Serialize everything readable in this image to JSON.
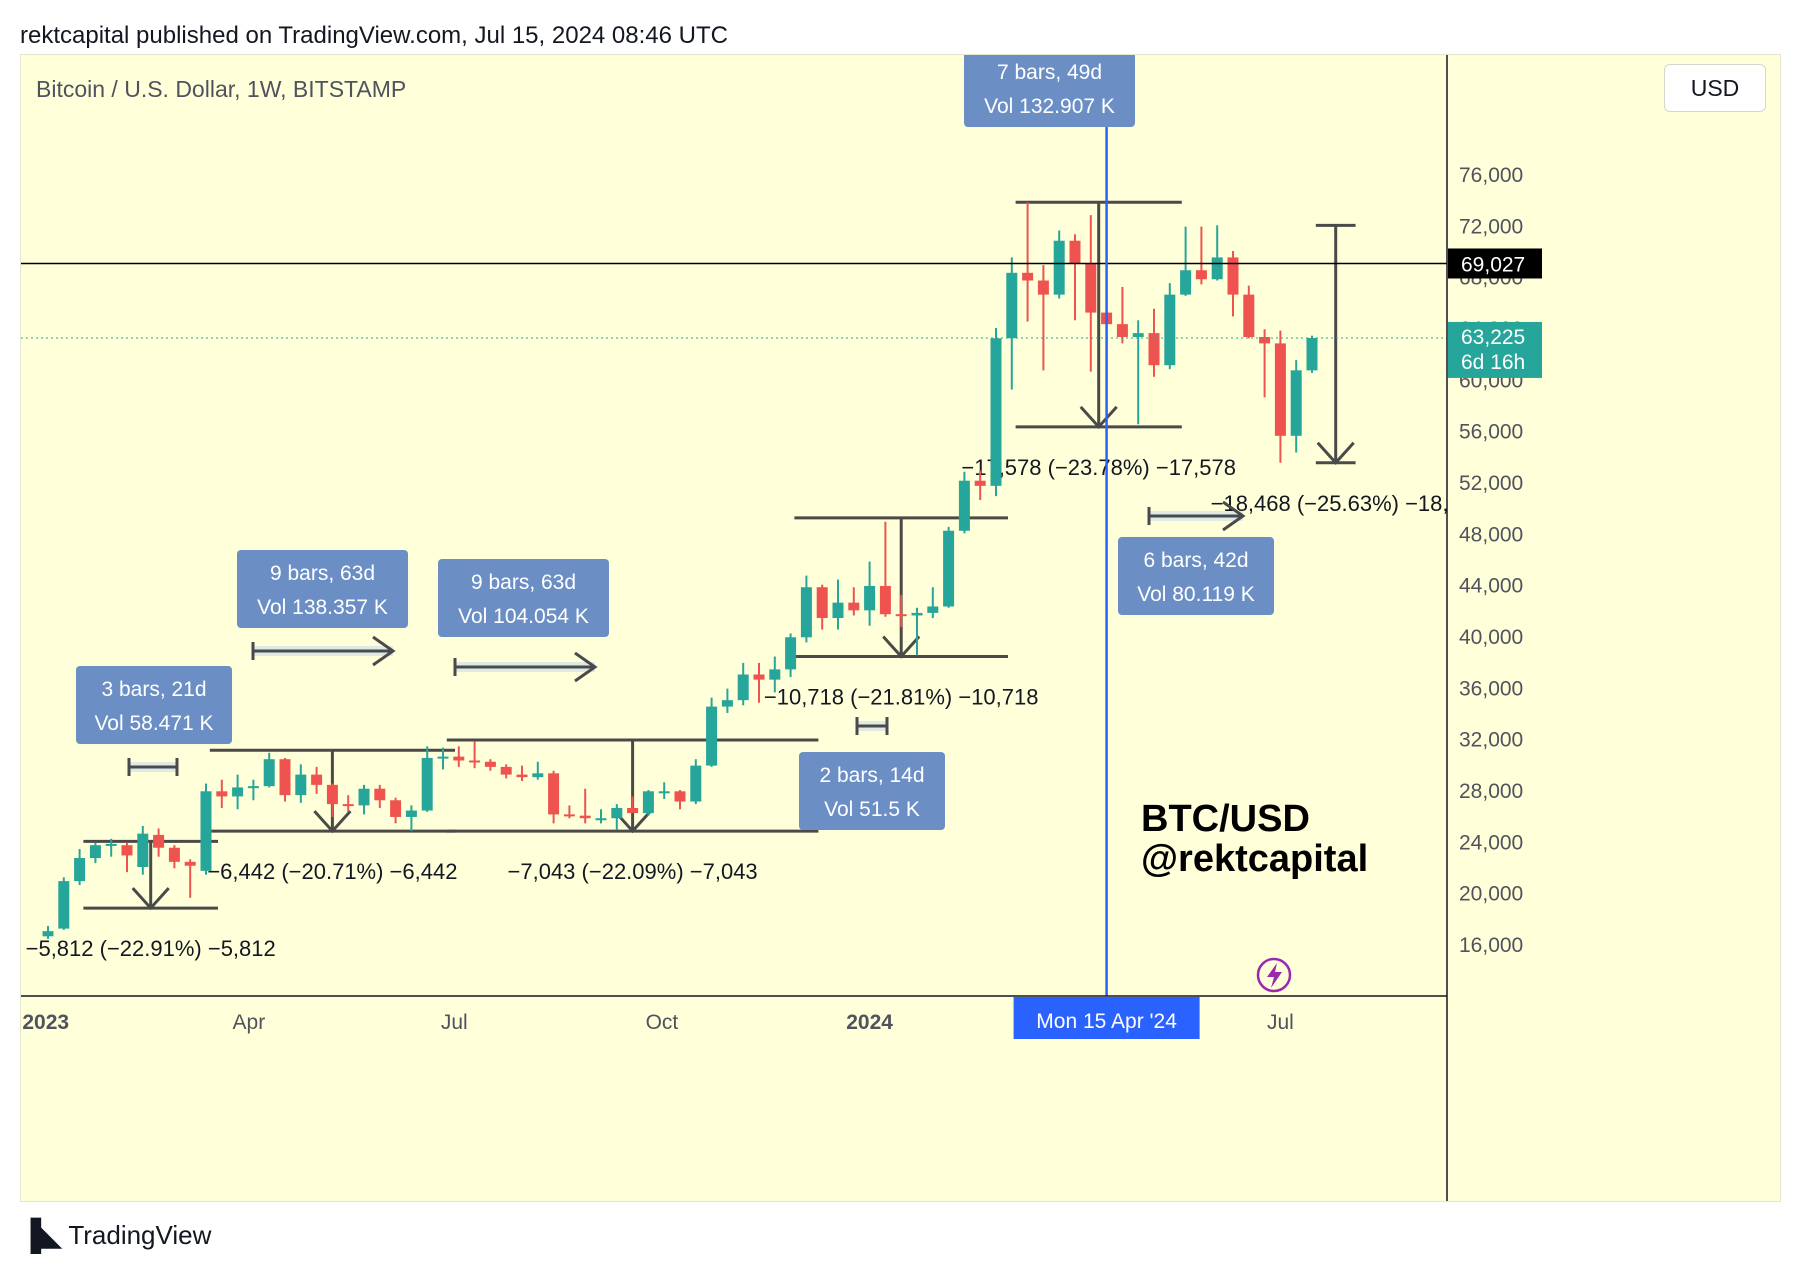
{
  "header": {
    "credit": "rektcapital published on TradingView.com, Jul 15, 2024 08:46 UTC"
  },
  "chart_header": {
    "symbol": "Bitcoin / U.S. Dollar, 1W, BITSTAMP",
    "currency_button": "USD"
  },
  "branding": {
    "watermark_line1": "BTC/USD",
    "watermark_line2": "@rektcapital",
    "logo_icon": "tradingview-logo-icon",
    "logo_text": "TradingView",
    "lightning_icon": "lightning-icon"
  },
  "colors": {
    "background": "#ffffd9",
    "up": "#26a69a",
    "down": "#ef5350",
    "vertical_line": "#2962ff",
    "callout": "#6b8fc5",
    "drawing": "#4a4a4a",
    "badge_current": "#26a69a",
    "badge_level": "#000000"
  },
  "chart_data": {
    "type": "candlestick",
    "timeframe": "1W",
    "title": "Bitcoin / U.S. Dollar, 1W, BITSTAMP",
    "ylim": [
      12000,
      80000
    ],
    "y_ticks": [
      16000,
      20000,
      24000,
      28000,
      32000,
      36000,
      40000,
      44000,
      48000,
      52000,
      56000,
      60000,
      64000,
      68000,
      72000,
      76000
    ],
    "y_tick_labels": [
      "16,000",
      "20,000",
      "24,000",
      "28,000",
      "32,000",
      "36,000",
      "40,000",
      "44,000",
      "48,000",
      "52,000",
      "56,000",
      "60,000",
      "64,000",
      "68,000",
      "72,000",
      "76,000"
    ],
    "x_labels": [
      {
        "date": "2023-01-01",
        "text": "2023",
        "bold": true
      },
      {
        "date": "2023-04-01",
        "text": "Apr",
        "bold": false
      },
      {
        "date": "2023-07-01",
        "text": "Jul",
        "bold": false
      },
      {
        "date": "2023-10-01",
        "text": "Oct",
        "bold": false
      },
      {
        "date": "2024-01-01",
        "text": "2024",
        "bold": true
      },
      {
        "date": "2024-07-01",
        "text": "Jul",
        "bold": false
      }
    ],
    "candles": [
      {
        "date": "2023-01-02",
        "o": 16600,
        "h": 17400,
        "l": 16400,
        "c": 17000
      },
      {
        "date": "2023-01-09",
        "o": 17200,
        "h": 21200,
        "l": 17100,
        "c": 20900
      },
      {
        "date": "2023-01-16",
        "o": 20900,
        "h": 23400,
        "l": 20600,
        "c": 22700
      },
      {
        "date": "2023-01-23",
        "o": 22700,
        "h": 23900,
        "l": 22300,
        "c": 23700
      },
      {
        "date": "2023-01-30",
        "o": 23700,
        "h": 24200,
        "l": 22800,
        "c": 23800
      },
      {
        "date": "2023-02-06",
        "o": 23700,
        "h": 23900,
        "l": 21600,
        "c": 22900
      },
      {
        "date": "2023-02-13",
        "o": 22000,
        "h": 25200,
        "l": 21400,
        "c": 24600
      },
      {
        "date": "2023-02-20",
        "o": 24500,
        "h": 25000,
        "l": 22800,
        "c": 23500
      },
      {
        "date": "2023-02-27",
        "o": 23500,
        "h": 23700,
        "l": 21900,
        "c": 22400
      },
      {
        "date": "2023-03-06",
        "o": 22400,
        "h": 22600,
        "l": 19600,
        "c": 22100
      },
      {
        "date": "2023-03-13",
        "o": 21700,
        "h": 28500,
        "l": 21400,
        "c": 27900
      },
      {
        "date": "2023-03-20",
        "o": 27900,
        "h": 28800,
        "l": 26600,
        "c": 27500
      },
      {
        "date": "2023-03-27",
        "o": 27500,
        "h": 29200,
        "l": 26500,
        "c": 28200
      },
      {
        "date": "2023-04-03",
        "o": 28200,
        "h": 28800,
        "l": 27200,
        "c": 28300
      },
      {
        "date": "2023-04-10",
        "o": 28300,
        "h": 30900,
        "l": 28200,
        "c": 30400
      },
      {
        "date": "2023-04-17",
        "o": 30400,
        "h": 30500,
        "l": 27100,
        "c": 27600
      },
      {
        "date": "2023-04-24",
        "o": 27600,
        "h": 30000,
        "l": 27000,
        "c": 29200
      },
      {
        "date": "2023-05-01",
        "o": 29200,
        "h": 29800,
        "l": 27700,
        "c": 28400
      },
      {
        "date": "2023-05-08",
        "o": 28400,
        "h": 28500,
        "l": 25900,
        "c": 26900
      },
      {
        "date": "2023-05-15",
        "o": 26900,
        "h": 27600,
        "l": 26300,
        "c": 26800
      },
      {
        "date": "2023-05-22",
        "o": 26800,
        "h": 28400,
        "l": 26100,
        "c": 28100
      },
      {
        "date": "2023-05-29",
        "o": 28100,
        "h": 28400,
        "l": 26600,
        "c": 27200
      },
      {
        "date": "2023-06-05",
        "o": 27200,
        "h": 27400,
        "l": 25400,
        "c": 25900
      },
      {
        "date": "2023-06-12",
        "o": 25900,
        "h": 26800,
        "l": 24800,
        "c": 26400
      },
      {
        "date": "2023-06-19",
        "o": 26400,
        "h": 31400,
        "l": 26300,
        "c": 30500
      },
      {
        "date": "2023-06-26",
        "o": 30500,
        "h": 31300,
        "l": 29600,
        "c": 30600
      },
      {
        "date": "2023-07-03",
        "o": 30600,
        "h": 31400,
        "l": 29800,
        "c": 30300
      },
      {
        "date": "2023-07-10",
        "o": 30300,
        "h": 31800,
        "l": 29700,
        "c": 30200
      },
      {
        "date": "2023-07-17",
        "o": 30200,
        "h": 30400,
        "l": 29500,
        "c": 29800
      },
      {
        "date": "2023-07-24",
        "o": 29800,
        "h": 30000,
        "l": 28900,
        "c": 29200
      },
      {
        "date": "2023-07-31",
        "o": 29200,
        "h": 29900,
        "l": 28700,
        "c": 29000
      },
      {
        "date": "2023-08-07",
        "o": 29000,
        "h": 30200,
        "l": 28800,
        "c": 29300
      },
      {
        "date": "2023-08-14",
        "o": 29300,
        "h": 29500,
        "l": 25400,
        "c": 26100
      },
      {
        "date": "2023-08-21",
        "o": 26100,
        "h": 26800,
        "l": 25800,
        "c": 26000
      },
      {
        "date": "2023-08-28",
        "o": 26000,
        "h": 28100,
        "l": 25400,
        "c": 25800
      },
      {
        "date": "2023-09-04",
        "o": 25800,
        "h": 26500,
        "l": 25400,
        "c": 25800
      },
      {
        "date": "2023-09-11",
        "o": 25800,
        "h": 26900,
        "l": 24900,
        "c": 26600
      },
      {
        "date": "2023-09-18",
        "o": 26600,
        "h": 27500,
        "l": 26400,
        "c": 26200
      },
      {
        "date": "2023-09-25",
        "o": 26200,
        "h": 28000,
        "l": 26000,
        "c": 27900
      },
      {
        "date": "2023-10-02",
        "o": 27900,
        "h": 28600,
        "l": 27300,
        "c": 27900
      },
      {
        "date": "2023-10-09",
        "o": 27900,
        "h": 28000,
        "l": 26500,
        "c": 27100
      },
      {
        "date": "2023-10-16",
        "o": 27100,
        "h": 30400,
        "l": 26900,
        "c": 29900
      },
      {
        "date": "2023-10-23",
        "o": 29900,
        "h": 35200,
        "l": 29800,
        "c": 34500
      },
      {
        "date": "2023-10-30",
        "o": 34500,
        "h": 35900,
        "l": 34000,
        "c": 35000
      },
      {
        "date": "2023-11-06",
        "o": 35000,
        "h": 37900,
        "l": 34600,
        "c": 37000
      },
      {
        "date": "2023-11-13",
        "o": 37000,
        "h": 37900,
        "l": 34800,
        "c": 36600
      },
      {
        "date": "2023-11-20",
        "o": 36600,
        "h": 38400,
        "l": 35600,
        "c": 37400
      },
      {
        "date": "2023-11-27",
        "o": 37400,
        "h": 40200,
        "l": 36800,
        "c": 39900
      },
      {
        "date": "2023-12-04",
        "o": 39900,
        "h": 44700,
        "l": 39500,
        "c": 43800
      },
      {
        "date": "2023-12-11",
        "o": 43800,
        "h": 44000,
        "l": 40500,
        "c": 41400
      },
      {
        "date": "2023-12-18",
        "o": 41400,
        "h": 44400,
        "l": 40500,
        "c": 42600
      },
      {
        "date": "2023-12-25",
        "o": 42600,
        "h": 43800,
        "l": 41600,
        "c": 42000
      },
      {
        "date": "2024-01-01",
        "o": 42000,
        "h": 45800,
        "l": 40800,
        "c": 43900
      },
      {
        "date": "2024-01-08",
        "o": 43900,
        "h": 48900,
        "l": 41500,
        "c": 41700
      },
      {
        "date": "2024-01-15",
        "o": 41700,
        "h": 43200,
        "l": 40700,
        "c": 41600
      },
      {
        "date": "2024-01-22",
        "o": 41600,
        "h": 42200,
        "l": 38500,
        "c": 41800
      },
      {
        "date": "2024-01-29",
        "o": 41800,
        "h": 43800,
        "l": 41400,
        "c": 42300
      },
      {
        "date": "2024-02-05",
        "o": 42300,
        "h": 48500,
        "l": 42200,
        "c": 48200
      },
      {
        "date": "2024-02-12",
        "o": 48200,
        "h": 52800,
        "l": 48000,
        "c": 52100
      },
      {
        "date": "2024-02-19",
        "o": 52100,
        "h": 52900,
        "l": 50600,
        "c": 51700
      },
      {
        "date": "2024-02-26",
        "o": 51700,
        "h": 64000,
        "l": 50900,
        "c": 63200
      },
      {
        "date": "2024-03-04",
        "o": 63200,
        "h": 69500,
        "l": 59200,
        "c": 68300
      },
      {
        "date": "2024-03-11",
        "o": 68300,
        "h": 73800,
        "l": 64500,
        "c": 67700
      },
      {
        "date": "2024-03-18",
        "o": 67700,
        "h": 68900,
        "l": 60700,
        "c": 66600
      },
      {
        "date": "2024-03-25",
        "o": 66600,
        "h": 71600,
        "l": 66300,
        "c": 70800
      },
      {
        "date": "2024-04-01",
        "o": 70800,
        "h": 71300,
        "l": 64600,
        "c": 69000
      },
      {
        "date": "2024-04-08",
        "o": 69000,
        "h": 72800,
        "l": 60600,
        "c": 65200
      },
      {
        "date": "2024-04-15",
        "o": 65200,
        "h": 66900,
        "l": 59600,
        "c": 64300
      },
      {
        "date": "2024-04-22",
        "o": 64300,
        "h": 67200,
        "l": 62800,
        "c": 63300
      },
      {
        "date": "2024-04-29",
        "o": 63300,
        "h": 64600,
        "l": 56500,
        "c": 63600
      },
      {
        "date": "2024-05-06",
        "o": 63600,
        "h": 65500,
        "l": 60200,
        "c": 61100
      },
      {
        "date": "2024-05-13",
        "o": 61100,
        "h": 67500,
        "l": 60800,
        "c": 66600
      },
      {
        "date": "2024-05-20",
        "o": 66600,
        "h": 71900,
        "l": 66500,
        "c": 68500
      },
      {
        "date": "2024-05-27",
        "o": 68500,
        "h": 71900,
        "l": 67400,
        "c": 67800
      },
      {
        "date": "2024-06-03",
        "o": 67800,
        "h": 72000,
        "l": 67700,
        "c": 69500
      },
      {
        "date": "2024-06-10",
        "o": 69500,
        "h": 70000,
        "l": 64900,
        "c": 66600
      },
      {
        "date": "2024-06-17",
        "o": 66600,
        "h": 67300,
        "l": 63200,
        "c": 63300
      },
      {
        "date": "2024-06-24",
        "o": 63300,
        "h": 63900,
        "l": 58600,
        "c": 62800
      },
      {
        "date": "2024-07-01",
        "o": 62800,
        "h": 63800,
        "l": 53500,
        "c": 55600
      },
      {
        "date": "2024-07-08",
        "o": 55600,
        "h": 61500,
        "l": 54300,
        "c": 60700
      },
      {
        "date": "2024-07-15",
        "o": 60700,
        "h": 63400,
        "l": 60500,
        "c": 63225
      }
    ],
    "horizontal_level": {
      "price": 69027,
      "badge": "69,027"
    },
    "current_price": {
      "price": 63225,
      "badge": "63,225",
      "countdown": "6d 16h"
    },
    "vertical_marker": {
      "date": "2024-04-15",
      "label": "Mon 15 Apr '24"
    },
    "callouts": [
      {
        "line1": "3 bars, 21d",
        "line2": "Vol 58.471 K"
      },
      {
        "line1": "9 bars, 63d",
        "line2": "Vol 138.357 K"
      },
      {
        "line1": "9 bars, 63d",
        "line2": "Vol 104.054 K"
      },
      {
        "line1": "2 bars, 14d",
        "line2": "Vol 51.5 K"
      },
      {
        "line1": "7 bars, 49d",
        "line2": "Vol 132.907 K"
      },
      {
        "line1": "6 bars, 42d",
        "line2": "Vol 80.119 K"
      }
    ],
    "measurements": [
      {
        "text": "−5,812 (−22.91%) −5,812",
        "top": 24000,
        "bottom": 18800,
        "from": "2023-01-23",
        "to": "2023-03-13"
      },
      {
        "text": "−6,442 (−20.71%) −6,442",
        "top": 31100,
        "bottom": 24800,
        "from": "2023-03-20",
        "to": "2023-06-26"
      },
      {
        "text": "−7,043 (−22.09%) −7,043",
        "top": 31900,
        "bottom": 24800,
        "from": "2023-07-03",
        "to": "2023-12-04"
      },
      {
        "text": "−10,718 (−21.81%) −10,718",
        "top": 49200,
        "bottom": 38400,
        "from": "2023-12-04",
        "to": "2024-02-26"
      },
      {
        "text": "−17,578 (−23.78%) −17,578",
        "top": 73800,
        "bottom": 56300,
        "from": "2024-03-11",
        "to": "2024-05-13"
      },
      {
        "text": "−18,468 (−25.63%) −18,4",
        "top": 72000,
        "bottom": 53500,
        "from": "2024-07-22",
        "to": "2024-07-29"
      }
    ]
  }
}
